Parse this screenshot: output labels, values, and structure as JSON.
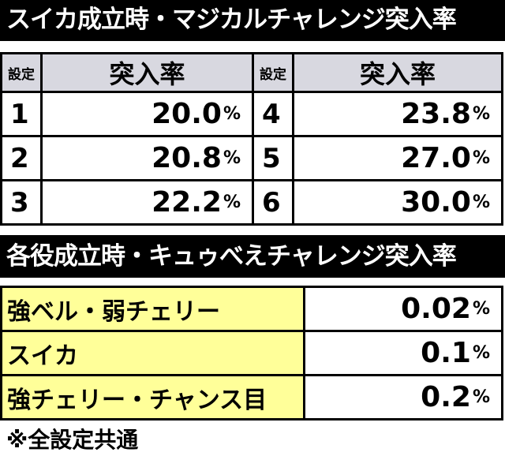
{
  "title1": "スイカ成立時・マジカルチャレンジ突入率",
  "table1": {
    "header": [
      "設定",
      "突入率",
      "設定",
      "突入率"
    ],
    "rows": [
      [
        "1",
        "20.0%",
        "4",
        "23.8%"
      ],
      [
        "2",
        "20.8%",
        "5",
        "27.0%"
      ],
      [
        "3",
        "22.2%",
        "6",
        "30.0%"
      ]
    ]
  },
  "title2": "各役成立時・キュゥべえチャレンジ突入率",
  "table2": {
    "rows": [
      [
        "強ベル・弱チェリー",
        "0.02%"
      ],
      [
        "スイカ",
        "0.1%"
      ],
      [
        "強チェリー・チャンス目",
        "0.2%"
      ]
    ]
  },
  "note": "※全設定共通"
}
